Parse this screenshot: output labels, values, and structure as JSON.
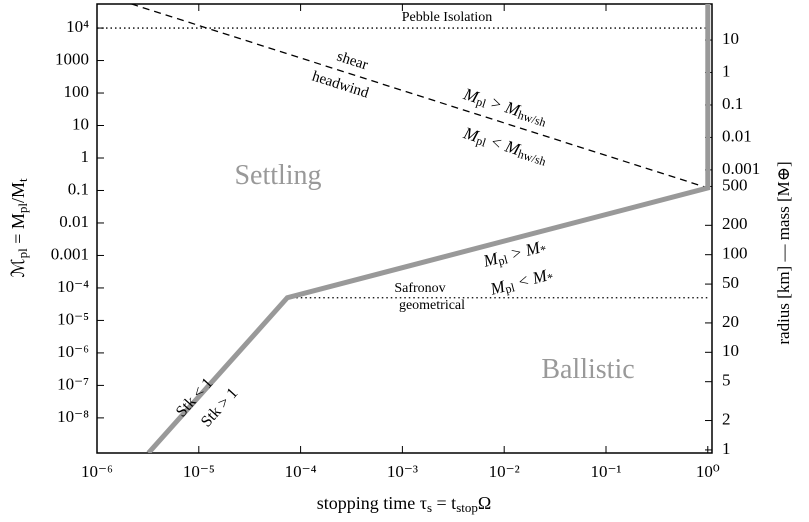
{
  "chart_data": {
    "type": "line",
    "xlabel": {
      "parts": [
        "stopping time τ",
        "s",
        " = t",
        "stop",
        "Ω"
      ]
    },
    "ylabel": {
      "parts": [
        "ℳ",
        "pl",
        " = M",
        "pl",
        "/M",
        "t"
      ]
    },
    "y2label": "radius [km] — mass [M⊕]",
    "log_x": true,
    "log_y": true,
    "xlim": [
      1e-06,
      1.1
    ],
    "ylim": [
      8.3e-10,
      55000
    ],
    "xticks": [
      {
        "value": 1e-06,
        "label": "10⁻⁶"
      },
      {
        "value": 1e-05,
        "label": "10⁻⁵"
      },
      {
        "value": 0.0001,
        "label": "10⁻⁴"
      },
      {
        "value": 0.001,
        "label": "10⁻³"
      },
      {
        "value": 0.01,
        "label": "10⁻²"
      },
      {
        "value": 0.1,
        "label": "10⁻¹"
      },
      {
        "value": 1,
        "label": "10⁰"
      }
    ],
    "yticks": [
      {
        "value": 1e-08,
        "label": "10⁻⁸"
      },
      {
        "value": 1e-07,
        "label": "10⁻⁷"
      },
      {
        "value": 1e-06,
        "label": "10⁻⁶"
      },
      {
        "value": 1e-05,
        "label": "10⁻⁵"
      },
      {
        "value": 0.0001,
        "label": "10⁻⁴"
      },
      0.001,
      0.01,
      0.1,
      1,
      10,
      100,
      1000,
      {
        "value": 10000,
        "label": "10⁴"
      }
    ],
    "y2lim": [
      1.9e-12,
      129
    ],
    "y2ticks": [
      0.001,
      0.01,
      0.1,
      1,
      10
    ],
    "y3lim": [
      0.93,
      37000
    ],
    "y3ticks": [
      1,
      2,
      5,
      10,
      20,
      50,
      100,
      200,
      500
    ],
    "series": [
      {
        "name": "Pebble Isolation",
        "color": "#000000",
        "style": "dotted",
        "x": [
          1e-06,
          1
        ],
        "values": [
          10000,
          10000
        ]
      },
      {
        "name": "Safronov geometrical",
        "color": "#000000",
        "style": "dotted",
        "x": [
          7.4e-05,
          1
        ],
        "values": [
          5e-05,
          5e-05
        ]
      },
      {
        "name": "shear headwind",
        "color": "#000000",
        "style": "dashed",
        "x": [
          1e-06,
          1
        ],
        "values": [
          120000,
          0.12
        ]
      },
      {
        "name": "boundary",
        "color": "#999999",
        "style": "thick",
        "x": [
          3.2e-06,
          7.4e-05,
          1,
          1
        ],
        "values": [
          8.3e-10,
          5e-05,
          0.12,
          55000
        ]
      }
    ],
    "annotations": [
      {
        "parts": [
          "Pebble Isolation"
        ]
      },
      {
        "parts": [
          "shear"
        ]
      },
      {
        "parts": [
          "headwind"
        ]
      },
      {
        "parts": [
          "M",
          "pl",
          " > M",
          "hw/sh"
        ]
      },
      {
        "parts": [
          "M",
          "pl",
          " < M",
          "hw/sh"
        ]
      },
      {
        "parts": [
          "M",
          "pl",
          " > M",
          "*"
        ]
      },
      {
        "parts": [
          "M",
          "pl",
          " < M",
          "*"
        ]
      },
      {
        "parts": [
          "Safronov"
        ]
      },
      {
        "parts": [
          "geometrical"
        ]
      },
      {
        "parts": [
          "Stk < 1"
        ]
      },
      {
        "parts": [
          "Stk > 1"
        ]
      },
      {
        "parts": [
          "Settling"
        ]
      },
      {
        "parts": [
          "Ballistic"
        ]
      }
    ]
  }
}
